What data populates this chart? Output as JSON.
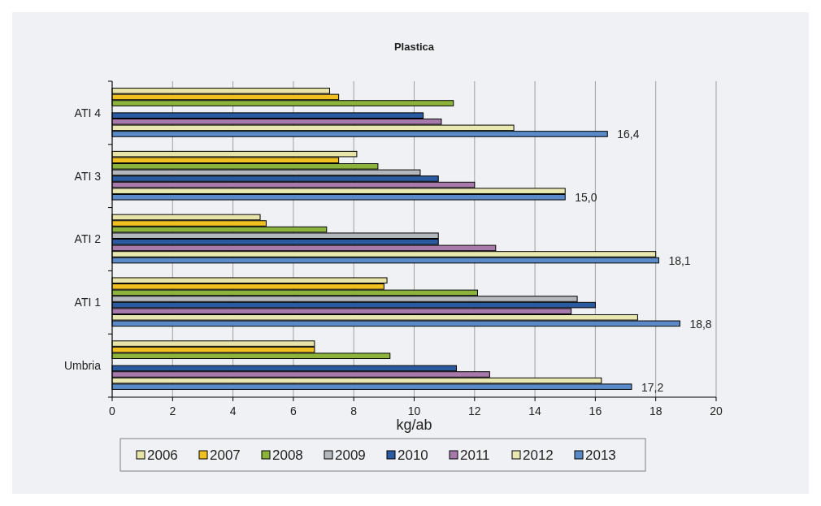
{
  "chart_data": {
    "type": "bar",
    "orientation": "horizontal",
    "title": "Plastica",
    "xlabel": "kg/ab",
    "categories": [
      "ATI 4",
      "ATI 3",
      "ATI 2",
      "ATI 1",
      "Umbria"
    ],
    "xlim": [
      0,
      20
    ],
    "xticks": [
      0,
      2,
      4,
      6,
      8,
      10,
      12,
      14,
      16,
      18,
      20
    ],
    "grid": "x",
    "legend": "bottom",
    "series": [
      {
        "name": "2006",
        "color": "#e8e4a8",
        "values": [
          7.2,
          8.1,
          4.9,
          9.1,
          6.7
        ]
      },
      {
        "name": "2007",
        "color": "#f0c020",
        "values": [
          7.5,
          7.5,
          5.1,
          9.0,
          6.7
        ]
      },
      {
        "name": "2008",
        "color": "#8cb43c",
        "values": [
          11.3,
          8.8,
          7.1,
          12.1,
          9.2
        ]
      },
      {
        "name": "2009",
        "color": "#b4b8bc",
        "values": [
          null,
          10.2,
          10.8,
          15.4,
          null
        ]
      },
      {
        "name": "2010",
        "color": "#2a5aa0",
        "values": [
          10.3,
          10.8,
          10.8,
          16.0,
          11.4
        ]
      },
      {
        "name": "2011",
        "color": "#a87aac",
        "values": [
          10.9,
          12.0,
          12.7,
          15.2,
          12.5
        ]
      },
      {
        "name": "2012",
        "color": "#e8e8b0",
        "values": [
          13.3,
          15.0,
          18.0,
          17.4,
          16.2
        ]
      },
      {
        "name": "2013",
        "color": "#5a8ac8",
        "values": [
          16.4,
          15.0,
          18.1,
          18.8,
          17.2
        ],
        "value_labels": [
          "16,4",
          "15,0",
          "18,1",
          "18,8",
          "17,2"
        ]
      }
    ]
  }
}
